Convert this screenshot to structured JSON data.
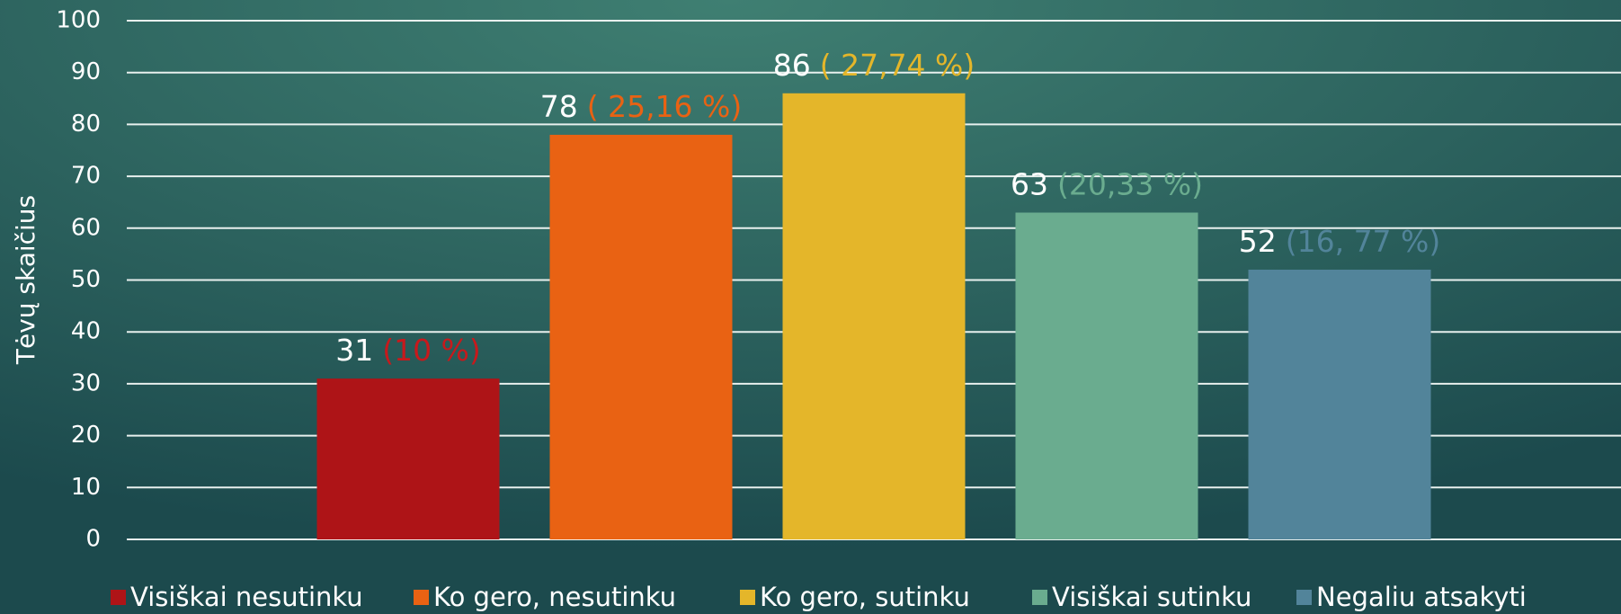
{
  "chart_data": {
    "type": "bar",
    "y_label": "Tėvų skaičius",
    "categories": [
      null
    ],
    "series": [
      {
        "name": "Visiškai nesutinku",
        "color": "#ae1417",
        "values": [
          31
        ],
        "percent_label": "(10 %)",
        "label_color": "#c8191c"
      },
      {
        "name": "Ko gero, nesutinku",
        "color": "#e96213",
        "values": [
          78
        ],
        "percent_label": "( 25,16 %)",
        "label_color": "#e96213"
      },
      {
        "name": "Ko gero, sutinku",
        "color": "#e4b62a",
        "values": [
          86
        ],
        "percent_label": "( 27,74 %)",
        "label_color": "#e4b62a"
      },
      {
        "name": "Visiškai sutinku",
        "color": "#6aac8f",
        "values": [
          63
        ],
        "percent_label": "(20,33 %)",
        "label_color": "#6aac8f"
      },
      {
        "name": "Negaliu atsakyti",
        "color": "#52849a",
        "values": [
          52
        ],
        "percent_label": "(16, 77 %)",
        "label_color": "#52849a"
      }
    ],
    "ylim": [
      0,
      100
    ],
    "yticks": [
      0,
      10,
      20,
      30,
      40,
      50,
      60,
      70,
      80,
      90,
      100
    ],
    "grid": true,
    "legend": "bottom"
  }
}
